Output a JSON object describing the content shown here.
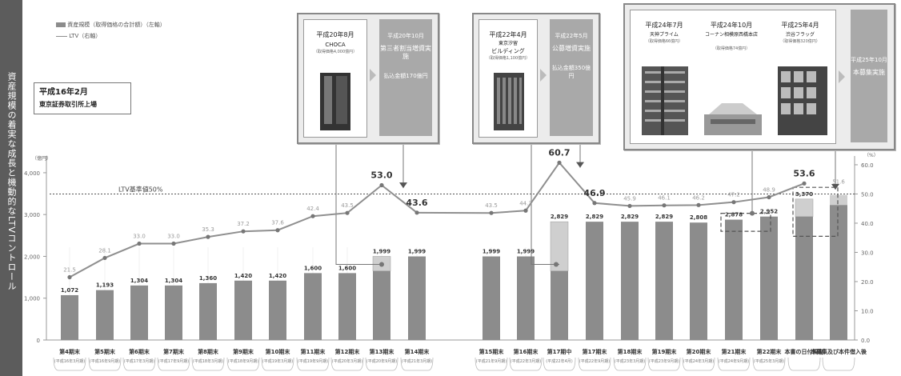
{
  "side_label": "資産規模の着実な成長と機動的なLTVコントロール",
  "legend": {
    "bar": "資産規模（取得価格の合計額）（左軸）",
    "line": "LTV（右軸）"
  },
  "callout": {
    "line1": "平成16年2月",
    "line2": "東京証券取引所上場"
  },
  "ltv_baseline_label": "LTV基準値50%",
  "left_unit": "（億円）",
  "right_unit": "（%）",
  "panels": {
    "p1": {
      "date": "平成20年8月",
      "name": "CHOCA",
      "price": "（取得価格4,000億円）",
      "action_title": "第三者割当増資実施",
      "action_date": "平成20年10月",
      "action_amount": "払込金額170億円"
    },
    "p2": {
      "date": "平成22年4月",
      "name1": "東京汐留",
      "name2": "ビルディング",
      "price": "（取得価格1,100億円）",
      "action_title": "公募増資実施",
      "action_date": "平成22年5月",
      "action_amount": "払込金額350億円"
    },
    "p3": {
      "items": [
        {
          "date": "平成24年7月",
          "name": "天神プライム",
          "price": "（取得価格66億円）"
        },
        {
          "date": "平成24年10月",
          "name": "コーナン相模原西橋本店",
          "price": "（取得価格74億円）"
        },
        {
          "date": "平成25年4月",
          "name": "渋谷フラッグ",
          "price": "（取得価格320億円）"
        }
      ],
      "action_date": "平成25年10月",
      "action_title": "本募集実施"
    }
  },
  "chart_data": {
    "type": "bar+line",
    "categories": [
      "第4期末",
      "第5期末",
      "第6期末",
      "第7期末",
      "第8期末",
      "第9期末",
      "第10期末",
      "第11期末",
      "第12期末",
      "第13期末",
      "第14期末",
      "第15期末",
      "第16期末",
      "第17期中",
      "第17期末",
      "第18期末",
      "第19期末",
      "第20期末",
      "第21期末",
      "第22期末",
      "本書の日付現在",
      "本募集及び本件借入後"
    ],
    "category_sub": [
      "(平成16年3月期)",
      "(平成16年9月期)",
      "(平成17年3月期)",
      "(平成17年9月期)",
      "(平成18年3月期)",
      "(平成18年9月期)",
      "(平成19年3月期)",
      "(平成19年9月期)",
      "(平成20年3月期)",
      "(平成20年9月期)",
      "(平成21年3月期)",
      "(平成21年9月期)",
      "(平成22年3月期)",
      "(平成22年4月)",
      "(平成22年9月期)",
      "(平成23年3月期)",
      "(平成23年9月期)",
      "(平成24年3月期)",
      "(平成24年9月期)",
      "(平成25年3月期)",
      "",
      ""
    ],
    "series": [
      {
        "name": "資産規模（取得価格の合計額）（左軸）",
        "type": "bar",
        "values": [
          1072,
          1193,
          1304,
          1304,
          1360,
          1420,
          1420,
          1600,
          1600,
          1999,
          1999,
          1999,
          1999,
          2829,
          2829,
          2829,
          2829,
          2808,
          2878,
          2952,
          3370,
          null
        ]
      },
      {
        "name": "LTV（右軸）",
        "type": "line",
        "values": [
          21.5,
          28.1,
          33.0,
          33.0,
          35.3,
          37.2,
          37.6,
          42.4,
          43.5,
          53.0,
          43.6,
          43.5,
          44.3,
          60.7,
          46.9,
          45.9,
          46.1,
          46.2,
          47.2,
          48.9,
          53.6,
          null
        ]
      }
    ],
    "bar_labels": [
      "1,072",
      "1,193",
      "1,304",
      "1,304",
      "1,360",
      "1,420",
      "1,420",
      "1,600",
      "1,600",
      "1,999",
      "1,999",
      "1,999",
      "1,999",
      "2,829",
      "2,829",
      "2,829",
      "2,829",
      "2,808",
      "2,878",
      "2,952",
      "3,370",
      ""
    ],
    "line_labels": [
      "21.5",
      "28.1",
      "33.0",
      "33.0",
      "35.3",
      "37.2",
      "37.6",
      "42.4",
      "43.5",
      "53.0",
      "43.6",
      "43.5",
      "44.3",
      "60.7",
      "46.9",
      "45.9",
      "46.1",
      "46.2",
      "47.2",
      "48.9",
      "53.6",
      "51.6"
    ],
    "y_left": {
      "ticks": [
        "0",
        "1,000",
        "2,000",
        "3,000",
        "4,000"
      ],
      "max": 4400
    },
    "y_right": {
      "ticks": [
        "0.0",
        "10.0",
        "20.0",
        "30.0",
        "40.0",
        "50.0",
        "60.0"
      ],
      "max": 63
    },
    "ltv_baseline": 50,
    "colors": {
      "bar": "#8c8c8c",
      "bar_light": "#cfcfcf",
      "line": "#8f8f8f",
      "baseline": "#555555"
    }
  }
}
